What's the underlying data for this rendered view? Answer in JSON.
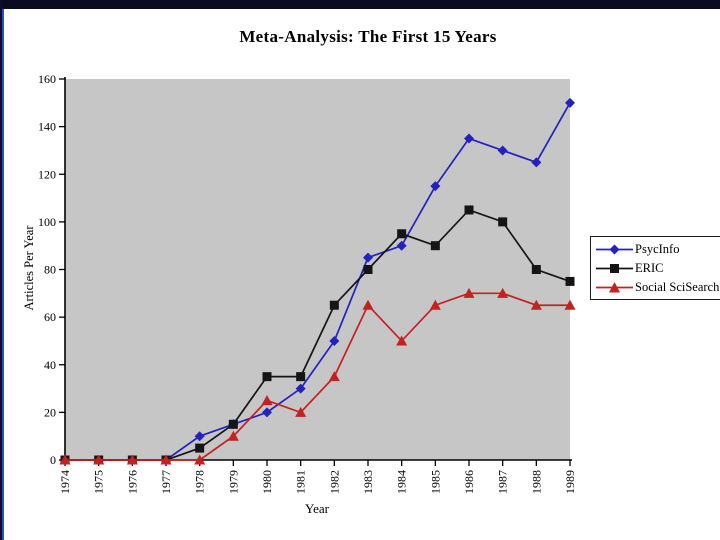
{
  "window": {
    "top_bar_color": "#0a0a20",
    "left_strip_colors": [
      "#0d0d2b",
      "#2a4ed2"
    ]
  },
  "slide": {
    "title": "Meta-Analysis: The First 15 Years"
  },
  "chart_data": {
    "type": "line",
    "title": "Meta-Analysis: The First 15 Years",
    "x": [
      "1974",
      "1975",
      "1976",
      "1977",
      "1978",
      "1979",
      "1980",
      "1981",
      "1982",
      "1983",
      "1984",
      "1985",
      "1986",
      "1987",
      "1988",
      "1989"
    ],
    "xlabel": "Year",
    "ylabel": "Articles Per Year",
    "ylim": [
      0,
      160
    ],
    "yticks": [
      0,
      20,
      40,
      60,
      80,
      100,
      120,
      140,
      160
    ],
    "grid": false,
    "plot_bg": "#c6c6c6",
    "axis_color": "#000000",
    "legend_position": "right",
    "series": [
      {
        "name": "PsycInfo",
        "color": "#2222c0",
        "marker": "diamond",
        "values": [
          0,
          0,
          0,
          0,
          10,
          15,
          20,
          30,
          50,
          85,
          90,
          115,
          135,
          130,
          125,
          150
        ]
      },
      {
        "name": "ERIC",
        "color": "#151515",
        "marker": "square",
        "values": [
          0,
          0,
          0,
          0,
          5,
          15,
          35,
          35,
          65,
          80,
          95,
          90,
          105,
          100,
          80,
          75
        ]
      },
      {
        "name": "Social SciSearch",
        "color": "#c42121",
        "marker": "triangle",
        "values": [
          0,
          0,
          0,
          0,
          0,
          10,
          25,
          20,
          35,
          65,
          50,
          65,
          70,
          70,
          65,
          65
        ]
      }
    ]
  }
}
